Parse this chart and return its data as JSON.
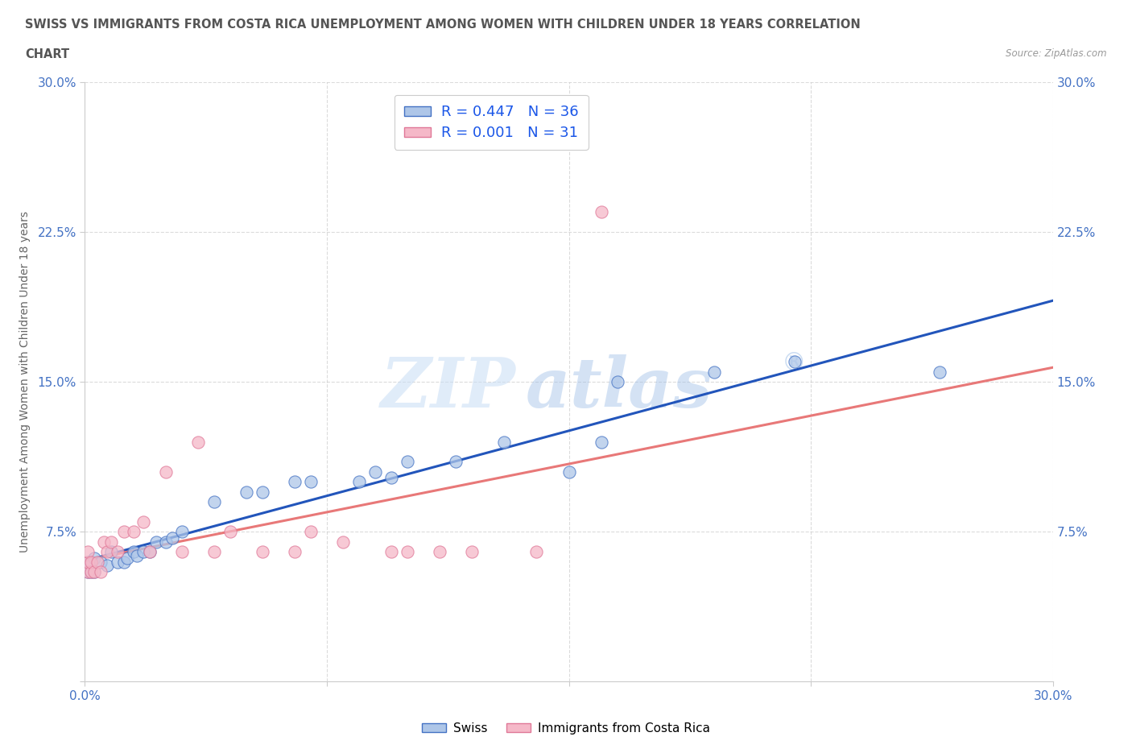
{
  "title_line1": "SWISS VS IMMIGRANTS FROM COSTA RICA UNEMPLOYMENT AMONG WOMEN WITH CHILDREN UNDER 18 YEARS CORRELATION",
  "title_line2": "CHART",
  "source": "Source: ZipAtlas.com",
  "ylabel": "Unemployment Among Women with Children Under 18 years",
  "xlim": [
    0,
    0.3
  ],
  "ylim": [
    0,
    0.3
  ],
  "xticks": [
    0.0,
    0.075,
    0.15,
    0.225,
    0.3
  ],
  "yticks": [
    0.0,
    0.075,
    0.15,
    0.225,
    0.3
  ],
  "xticklabels": [
    "0.0%",
    "",
    "",
    "",
    "30.0%"
  ],
  "yticklabels_left": [
    "",
    "7.5%",
    "15.0%",
    "22.5%",
    "30.0%"
  ],
  "yticklabels_right": [
    "",
    "7.5%",
    "15.0%",
    "22.5%",
    "30.0%"
  ],
  "swiss_color": "#aec6e8",
  "swiss_edge_color": "#4472c4",
  "cr_color": "#f5b8c8",
  "cr_edge_color": "#e07898",
  "swiss_line_color": "#2255bb",
  "cr_line_color": "#e87878",
  "R_swiss": 0.447,
  "N_swiss": 36,
  "R_cr": 0.001,
  "N_cr": 31,
  "legend_label_swiss": "Swiss",
  "legend_label_cr": "Immigrants from Costa Rica",
  "legend_text_color": "#1a56e8",
  "background_color": "#ffffff",
  "grid_color": "#cccccc",
  "swiss_x": [
    0.001,
    0.001,
    0.002,
    0.003,
    0.003,
    0.005,
    0.007,
    0.008,
    0.01,
    0.012,
    0.013,
    0.015,
    0.016,
    0.018,
    0.02,
    0.022,
    0.025,
    0.027,
    0.03,
    0.04,
    0.05,
    0.055,
    0.065,
    0.07,
    0.085,
    0.09,
    0.095,
    0.1,
    0.115,
    0.13,
    0.15,
    0.16,
    0.165,
    0.195,
    0.22,
    0.265
  ],
  "swiss_y": [
    0.055,
    0.06,
    0.055,
    0.055,
    0.062,
    0.06,
    0.058,
    0.065,
    0.06,
    0.06,
    0.062,
    0.065,
    0.063,
    0.065,
    0.065,
    0.07,
    0.07,
    0.072,
    0.075,
    0.09,
    0.095,
    0.095,
    0.1,
    0.1,
    0.1,
    0.105,
    0.102,
    0.11,
    0.11,
    0.12,
    0.105,
    0.12,
    0.15,
    0.155,
    0.16,
    0.155
  ],
  "cr_x": [
    0.001,
    0.001,
    0.001,
    0.002,
    0.002,
    0.003,
    0.004,
    0.005,
    0.006,
    0.007,
    0.008,
    0.01,
    0.012,
    0.015,
    0.018,
    0.02,
    0.025,
    0.03,
    0.035,
    0.04,
    0.045,
    0.055,
    0.065,
    0.07,
    0.08,
    0.095,
    0.1,
    0.11,
    0.12,
    0.14,
    0.16
  ],
  "cr_y": [
    0.055,
    0.06,
    0.065,
    0.055,
    0.06,
    0.055,
    0.06,
    0.055,
    0.07,
    0.065,
    0.07,
    0.065,
    0.075,
    0.075,
    0.08,
    0.065,
    0.105,
    0.065,
    0.12,
    0.065,
    0.075,
    0.065,
    0.065,
    0.075,
    0.07,
    0.065,
    0.065,
    0.065,
    0.065,
    0.065,
    0.235
  ]
}
